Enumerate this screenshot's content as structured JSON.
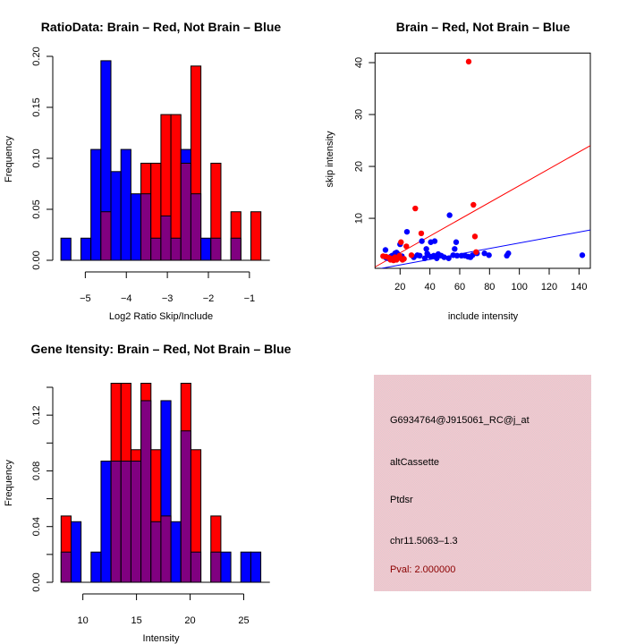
{
  "colors": {
    "brain": "#ff0000",
    "not_brain": "#0000ff",
    "overlap": "#800080",
    "panel_bg": "#ffc0cb",
    "pval_text": "#8b0000"
  },
  "chart_data": [
    {
      "id": "ratio-hist",
      "type": "bar",
      "title": "RatioData: Brain – Red, Not Brain – Blue",
      "xlabel": "Log2 Ratio Skip/Include",
      "ylabel": "Frequency",
      "xlim": [
        -5.59,
        -0.72
      ],
      "ylim": [
        0,
        0.2
      ],
      "xticks": [
        -5,
        -4,
        -3,
        -2,
        -1
      ],
      "xtick_labels": [
        "−5",
        "−4",
        "−3",
        "−2",
        "−1"
      ],
      "yticks": [
        0,
        0.05,
        0.1,
        0.15,
        0.2
      ],
      "ytick_labels": [
        "0.00",
        "0.05",
        "0.10",
        "0.15",
        "0.20"
      ],
      "bin_start": -5.594,
      "bin_width": 0.2437,
      "series": [
        {
          "name": "Not Brain",
          "color": "blue",
          "n": 46,
          "values": [
            0.0217,
            0,
            0.0217,
            0.1087,
            0.1957,
            0.087,
            0.1087,
            0.0652,
            0.0652,
            0.0217,
            0.0435,
            0.0217,
            0.1087,
            0.0652,
            0.0217,
            0.0217,
            0,
            0.0217,
            0,
            0
          ]
        },
        {
          "name": "Brain",
          "color": "red",
          "n": 21,
          "values": [
            0,
            0,
            0,
            0,
            0.0476,
            0,
            0,
            0,
            0.0952,
            0.0952,
            0.1429,
            0.1429,
            0.0952,
            0.1905,
            0,
            0.0952,
            0,
            0.0476,
            0,
            0.0476
          ]
        }
      ]
    },
    {
      "id": "intensity-scatter",
      "type": "scatter",
      "title": "Brain – Red, Not Brain – Blue",
      "xlabel": "include intensity",
      "ylabel": "skip intensity",
      "xlim": [
        3.2,
        147.6
      ],
      "ylim": [
        0.36,
        41.85
      ],
      "xticks": [
        20,
        40,
        60,
        80,
        100,
        120,
        140
      ],
      "yticks": [
        10,
        20,
        30,
        40
      ],
      "series": [
        {
          "name": "Brain",
          "color": "red",
          "points": [
            [
              66,
              40.2
            ],
            [
              30.2,
              11.9
            ],
            [
              69.2,
              12.6
            ],
            [
              34.2,
              7.1
            ],
            [
              70.2,
              6.5
            ],
            [
              20.6,
              5.4
            ],
            [
              24.2,
              4.6
            ],
            [
              27.6,
              2.9
            ],
            [
              8.6,
              2.7
            ],
            [
              12.6,
              2.4
            ],
            [
              17.6,
              2.0
            ],
            [
              21.6,
              2.0
            ],
            [
              13.6,
              2.0
            ],
            [
              16.6,
              2.5
            ],
            [
              19.6,
              2.8
            ],
            [
              71,
              3.5
            ],
            [
              10.6,
              2.6
            ],
            [
              14.6,
              2.2
            ],
            [
              18.6,
              2.3
            ],
            [
              15.6,
              1.9
            ],
            [
              22.6,
              2.2
            ]
          ],
          "fit_line": {
            "intercept": 0.1,
            "slope": 0.162
          }
        },
        {
          "name": "Not Brain",
          "color": "blue",
          "points": [
            [
              53.2,
              10.6
            ],
            [
              24.6,
              7.4
            ],
            [
              10.2,
              3.9
            ],
            [
              20,
              5.0
            ],
            [
              34.6,
              5.6
            ],
            [
              40.6,
              5.4
            ],
            [
              43.2,
              5.6
            ],
            [
              57.6,
              5.4
            ],
            [
              56.6,
              4.1
            ],
            [
              37.6,
              4.1
            ],
            [
              142.2,
              2.9
            ],
            [
              92.6,
              3.25
            ],
            [
              91.6,
              2.8
            ],
            [
              79.6,
              2.9
            ],
            [
              76.6,
              3.25
            ],
            [
              71.6,
              3.25
            ],
            [
              68.6,
              2.9
            ],
            [
              67.2,
              2.5
            ],
            [
              63.6,
              2.8
            ],
            [
              61.2,
              2.8
            ],
            [
              58.2,
              2.8
            ],
            [
              52.6,
              2.3
            ],
            [
              49.6,
              2.5
            ],
            [
              47.6,
              2.8
            ],
            [
              44.6,
              2.3
            ],
            [
              45.6,
              3.1
            ],
            [
              40.6,
              2.6
            ],
            [
              38.6,
              2.9
            ],
            [
              36.6,
              2.3
            ],
            [
              38.2,
              3.2
            ],
            [
              33.2,
              2.8
            ],
            [
              29.2,
              2.5
            ],
            [
              21.2,
              2.7
            ],
            [
              18.6,
              3.1
            ],
            [
              16.6,
              3.25
            ],
            [
              14.6,
              2.8
            ],
            [
              12.0,
              2.3
            ],
            [
              15.6,
              2.4
            ],
            [
              10.6,
              2.4
            ],
            [
              17.6,
              3.4
            ],
            [
              13.6,
              2.6
            ],
            [
              19.6,
              2.5
            ],
            [
              65.6,
              2.6
            ],
            [
              55.6,
              2.9
            ],
            [
              42.6,
              2.8
            ],
            [
              31.6,
              2.9
            ]
          ],
          "fit_line": {
            "intercept": -0.04,
            "slope": 0.0528
          }
        }
      ]
    },
    {
      "id": "gene-intensity-hist",
      "type": "bar",
      "title": "Gene Itensity: Brain – Red, Not Brain – Blue",
      "xlabel": "Intensity",
      "ylabel": "Frequency",
      "xlim": [
        7.97,
        26.6
      ],
      "ylim": [
        0,
        0.14
      ],
      "xticks": [
        10,
        15,
        20,
        25
      ],
      "yticks": [
        0,
        0.02,
        0.04,
        0.06,
        0.08,
        0.1,
        0.12,
        0.14
      ],
      "ytick_labels": [
        "0.00",
        "",
        "0.04",
        "",
        "0.08",
        "",
        "0.12",
        ""
      ],
      "bin_start": 7.97,
      "bin_width": 0.931,
      "series": [
        {
          "name": "Not Brain",
          "color": "blue",
          "n": 46,
          "values": [
            0.0217,
            0.0435,
            0,
            0.0217,
            0.087,
            0.087,
            0.087,
            0.087,
            0.1304,
            0.0435,
            0.1304,
            0.0435,
            0.1087,
            0.0217,
            0,
            0.0217,
            0.0217,
            0,
            0.0217,
            0.0217
          ]
        },
        {
          "name": "Brain",
          "color": "red",
          "n": 21,
          "values": [
            0.0476,
            0,
            0,
            0,
            0,
            0.1429,
            0.1429,
            0.0952,
            0.1429,
            0.0952,
            0.0476,
            0,
            0.1429,
            0.0952,
            0,
            0.0476,
            0,
            0,
            0,
            0
          ]
        }
      ]
    }
  ],
  "info_panel": {
    "probe_id": "G6934764@J915061_RC@j_at",
    "event_type": "altCassette",
    "gene": "Ptdsr",
    "location": "chr11.5063–1.3",
    "pval": "Pval: 2.000000"
  }
}
